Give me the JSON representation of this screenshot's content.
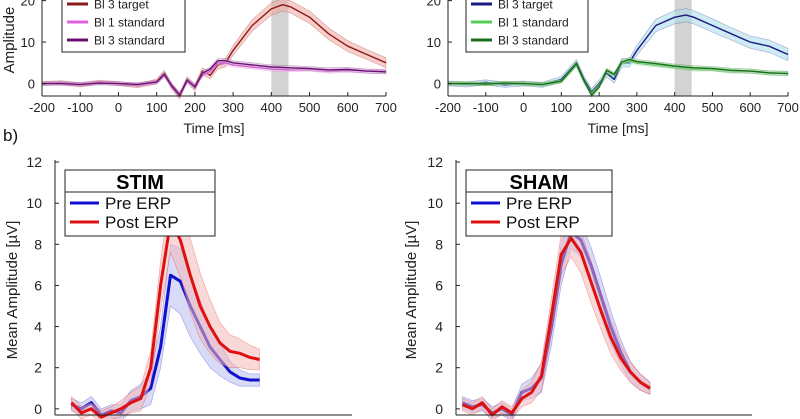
{
  "panel_b_label": "b)",
  "chart_data": [
    {
      "id": "top-left",
      "type": "line",
      "xlabel": "Time [ms]",
      "ylabel": "Amplitude",
      "xlim": [
        -200,
        700
      ],
      "ylim": [
        -3,
        24
      ],
      "xticks": [
        -200,
        -100,
        0,
        100,
        200,
        300,
        400,
        500,
        600,
        700
      ],
      "yticks": [
        0,
        10,
        20
      ],
      "highlight": [
        400,
        445
      ],
      "legend": [
        "Bl 3 target",
        "Bl 1 standard",
        "Bl 3 standard"
      ],
      "colors": {
        "band": "#d3d3d3",
        "edge": "#aaaaaa"
      },
      "series": [
        {
          "name": "Bl 3 target",
          "color": "#8b1a1a",
          "fill": "#f2a6a0",
          "x": [
            -200,
            -150,
            -100,
            -50,
            0,
            50,
            100,
            120,
            140,
            160,
            180,
            200,
            220,
            240,
            260,
            280,
            300,
            350,
            400,
            430,
            450,
            500,
            550,
            600,
            650,
            700
          ],
          "y": [
            0,
            0.2,
            -0.3,
            0.3,
            0,
            -0.5,
            0.5,
            2.5,
            -0.8,
            -3,
            1,
            -1,
            3,
            2,
            4.5,
            5,
            8,
            14,
            18,
            19,
            18.5,
            16,
            12,
            9,
            7,
            5
          ],
          "err": [
            0.5,
            0.5,
            0.5,
            0.5,
            0.5,
            0.5,
            0.6,
            0.7,
            0.7,
            0.7,
            0.7,
            0.8,
            0.8,
            0.9,
            1,
            1,
            1.2,
            1.4,
            1.5,
            1.5,
            1.5,
            1.5,
            1.4,
            1.3,
            1.2,
            1.2
          ]
        },
        {
          "name": "Bl 1 standard",
          "color": "#e060e0",
          "fill": "#f5c2f0",
          "x": [
            -200,
            -150,
            -100,
            -50,
            0,
            50,
            100,
            120,
            140,
            160,
            180,
            200,
            220,
            240,
            260,
            280,
            300,
            350,
            400,
            450,
            500,
            550,
            600,
            650,
            700
          ],
          "y": [
            0,
            0.1,
            -0.2,
            0.2,
            0,
            -0.3,
            0.3,
            2,
            -0.5,
            -2.5,
            0.5,
            -0.5,
            2,
            3,
            5,
            5,
            4.5,
            4,
            3.5,
            3.3,
            3.5,
            3,
            3.2,
            3,
            3
          ],
          "err": [
            0.4,
            0.4,
            0.4,
            0.4,
            0.4,
            0.4,
            0.4,
            0.5,
            0.5,
            0.5,
            0.5,
            0.5,
            0.5,
            0.5,
            0.5,
            0.5,
            0.5,
            0.5,
            0.5,
            0.5,
            0.5,
            0.5,
            0.5,
            0.5,
            0.5
          ]
        },
        {
          "name": "Bl 3 standard",
          "color": "#6a1070",
          "fill": "#d6b8dc",
          "x": [
            -200,
            -150,
            -100,
            -50,
            0,
            50,
            100,
            120,
            140,
            160,
            180,
            200,
            220,
            240,
            260,
            280,
            300,
            350,
            400,
            450,
            500,
            550,
            600,
            650,
            700
          ],
          "y": [
            0,
            0,
            -0.2,
            0.1,
            0,
            -0.2,
            0.4,
            2.2,
            -0.6,
            -2.8,
            0.8,
            -0.8,
            2.5,
            3.5,
            5.5,
            5.5,
            5,
            4.5,
            4,
            3.8,
            3.6,
            3.3,
            3.4,
            3,
            2.8
          ],
          "err": [
            0.4,
            0.4,
            0.4,
            0.4,
            0.4,
            0.4,
            0.4,
            0.5,
            0.5,
            0.5,
            0.5,
            0.5,
            0.5,
            0.5,
            0.5,
            0.5,
            0.5,
            0.5,
            0.5,
            0.5,
            0.5,
            0.5,
            0.5,
            0.5,
            0.5
          ]
        }
      ]
    },
    {
      "id": "top-right",
      "type": "line",
      "xlabel": "Time [ms]",
      "ylabel": "",
      "xlim": [
        -200,
        700
      ],
      "ylim": [
        -3,
        24
      ],
      "xticks": [
        -200,
        -100,
        0,
        100,
        200,
        300,
        400,
        500,
        600,
        700
      ],
      "yticks": [
        0,
        10,
        20
      ],
      "highlight": [
        400,
        445
      ],
      "legend": [
        "Bl 3 target",
        "Bl 1 standard",
        "Bl 3 standard"
      ],
      "colors": {
        "band": "#d3d3d3",
        "edge": "#aaaaaa"
      },
      "series": [
        {
          "name": "Bl 3 target",
          "color": "#1a1a80",
          "fill": "#a8dcec",
          "x": [
            -200,
            -150,
            -100,
            -50,
            0,
            50,
            100,
            140,
            160,
            180,
            200,
            220,
            240,
            260,
            280,
            300,
            350,
            400,
            430,
            450,
            500,
            550,
            600,
            650,
            700
          ],
          "y": [
            0,
            -0.2,
            0.3,
            -0.3,
            0,
            -0.3,
            1,
            5,
            1,
            -2,
            0,
            2.5,
            1,
            5,
            5,
            8,
            14,
            16,
            16.5,
            16,
            14,
            12,
            10,
            9,
            7
          ],
          "err": [
            0.6,
            0.6,
            0.6,
            0.6,
            0.6,
            0.6,
            0.7,
            0.8,
            0.8,
            0.8,
            0.8,
            0.9,
            0.9,
            1,
            1,
            1.2,
            1.5,
            1.6,
            1.6,
            1.6,
            1.6,
            1.5,
            1.5,
            1.5,
            1.5
          ]
        },
        {
          "name": "Bl 1 standard",
          "color": "#55cc55",
          "fill": "#c0ecc0",
          "x": [
            -200,
            -150,
            -100,
            -50,
            0,
            50,
            100,
            140,
            160,
            180,
            200,
            220,
            240,
            260,
            280,
            300,
            350,
            400,
            450,
            500,
            550,
            600,
            650,
            700
          ],
          "y": [
            0,
            0.1,
            -0.2,
            0.2,
            0,
            -0.3,
            0.5,
            4.5,
            0.5,
            -2.5,
            -0.5,
            3,
            2,
            5,
            5.5,
            5,
            4.5,
            4,
            3.5,
            3.5,
            3,
            3,
            2.5,
            2.5
          ],
          "err": [
            0.4,
            0.4,
            0.4,
            0.4,
            0.4,
            0.4,
            0.4,
            0.5,
            0.5,
            0.5,
            0.5,
            0.5,
            0.5,
            0.5,
            0.5,
            0.5,
            0.5,
            0.5,
            0.5,
            0.5,
            0.5,
            0.5,
            0.5,
            0.5
          ]
        },
        {
          "name": "Bl 3 standard",
          "color": "#1a6e1a",
          "fill": "#a6d6a6",
          "x": [
            -200,
            -150,
            -100,
            -50,
            0,
            50,
            100,
            140,
            160,
            180,
            200,
            220,
            240,
            260,
            280,
            300,
            350,
            400,
            450,
            500,
            550,
            600,
            650,
            700
          ],
          "y": [
            0,
            0,
            -0.1,
            0.1,
            0,
            -0.2,
            0.6,
            4.8,
            0.8,
            -2.8,
            -0.8,
            3.2,
            2.2,
            5.2,
            5.8,
            5.3,
            4.8,
            4.2,
            3.8,
            3.6,
            3.2,
            3,
            2.6,
            2.4
          ],
          "err": [
            0.4,
            0.4,
            0.4,
            0.4,
            0.4,
            0.4,
            0.4,
            0.5,
            0.5,
            0.5,
            0.5,
            0.5,
            0.5,
            0.5,
            0.5,
            0.5,
            0.5,
            0.5,
            0.5,
            0.5,
            0.5,
            0.5,
            0.5,
            0.5
          ]
        }
      ]
    },
    {
      "id": "bottom-left",
      "type": "line",
      "title": "STIM",
      "xlabel": "",
      "ylabel": "Mean Amplitude [µV]",
      "xlim": [
        -200,
        700
      ],
      "ylim": [
        -0.3,
        12.1
      ],
      "xticks": [],
      "yticks": [
        0,
        2,
        4,
        6,
        8,
        10,
        12
      ],
      "legend": [
        "Pre ERP",
        "Post ERP"
      ],
      "series": [
        {
          "name": "Pre ERP",
          "color": "#1010d0",
          "fill": "#b8bcee",
          "x": [
            -150,
            -120,
            -90,
            -60,
            -30,
            0,
            30,
            60,
            90,
            120,
            150,
            180,
            210,
            240,
            270,
            300,
            330,
            360,
            390,
            420
          ],
          "y": [
            0.2,
            0,
            0.3,
            -0.3,
            -0.1,
            -0.2,
            0.4,
            0.6,
            1,
            3,
            6.5,
            6.2,
            5,
            4,
            3,
            2.4,
            1.8,
            1.5,
            1.4,
            1.4
          ],
          "err": [
            0.3,
            0.3,
            0.3,
            0.3,
            0.3,
            0.4,
            0.5,
            0.6,
            0.8,
            1,
            1.5,
            1.6,
            1.5,
            1.3,
            1,
            0.8,
            0.5,
            0.4,
            0.3,
            0.3
          ]
        },
        {
          "name": "Post ERP",
          "color": "#e01010",
          "fill": "#f4b8b8",
          "x": [
            -150,
            -120,
            -90,
            -60,
            -30,
            0,
            30,
            60,
            90,
            120,
            150,
            180,
            210,
            240,
            270,
            300,
            330,
            360,
            390,
            420
          ],
          "y": [
            0.3,
            -0.2,
            0,
            -0.4,
            -0.2,
            0,
            0.3,
            0.5,
            2,
            6,
            9.1,
            8.2,
            6.5,
            5,
            4,
            3.2,
            2.8,
            2.7,
            2.5,
            2.4
          ],
          "err": [
            0.3,
            0.3,
            0.3,
            0.3,
            0.3,
            0.4,
            0.5,
            0.6,
            0.8,
            1.2,
            1.5,
            1.8,
            1.8,
            1.6,
            1.3,
            1,
            0.8,
            0.7,
            0.6,
            0.5
          ]
        }
      ]
    },
    {
      "id": "bottom-right",
      "type": "line",
      "title": "SHAM",
      "xlabel": "",
      "ylabel": "Mean Amplitude [µV]",
      "xlim": [
        -200,
        700
      ],
      "ylim": [
        -0.3,
        12.1
      ],
      "xticks": [],
      "yticks": [
        0,
        2,
        4,
        6,
        8,
        10,
        12
      ],
      "legend": [
        "Pre ERP",
        "Post ERP"
      ],
      "series": [
        {
          "name": "Pre ERP",
          "color": "#1010d0",
          "fill": "#b8bcee",
          "x": [
            -180,
            -150,
            -120,
            -90,
            -60,
            -30,
            0,
            30,
            60,
            90,
            120,
            150,
            180,
            210,
            240,
            270,
            300,
            330,
            360,
            390
          ],
          "y": [
            0.3,
            0.1,
            0.2,
            -0.2,
            0,
            -0.3,
            0.8,
            1,
            1.5,
            4,
            7,
            8.6,
            8.2,
            7,
            5.5,
            4,
            2.8,
            1.8,
            1.3,
            1
          ],
          "err": [
            0.3,
            0.3,
            0.3,
            0.3,
            0.3,
            0.3,
            0.4,
            0.5,
            0.7,
            0.9,
            1,
            0.8,
            0.8,
            0.9,
            0.9,
            0.8,
            0.6,
            0.5,
            0.4,
            0.3
          ]
        },
        {
          "name": "Post ERP",
          "color": "#e01010",
          "fill": "#f4b8b8",
          "x": [
            -180,
            -150,
            -120,
            -90,
            -60,
            -30,
            0,
            30,
            60,
            90,
            120,
            150,
            180,
            210,
            240,
            270,
            300,
            330,
            360,
            390
          ],
          "y": [
            0.2,
            0,
            0.3,
            -0.3,
            0.1,
            -0.2,
            0.5,
            0.8,
            1.6,
            4.5,
            7.5,
            8.3,
            7.6,
            6.2,
            4.8,
            3.5,
            2.5,
            1.8,
            1.3,
            1
          ],
          "err": [
            0.3,
            0.3,
            0.3,
            0.3,
            0.3,
            0.3,
            0.4,
            0.5,
            0.7,
            0.9,
            1,
            0.9,
            1,
            1,
            0.9,
            0.8,
            0.6,
            0.5,
            0.4,
            0.3
          ]
        }
      ]
    }
  ]
}
